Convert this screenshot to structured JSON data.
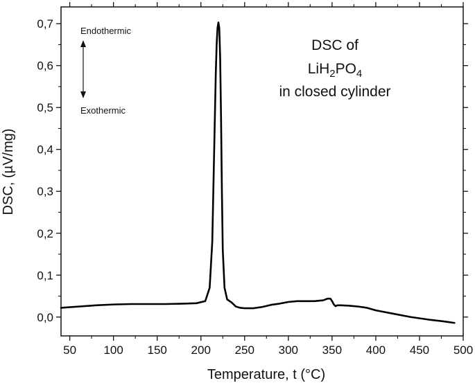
{
  "chart_data": {
    "type": "line",
    "xlabel": "Temperature, t (°C)",
    "ylabel": "DSC, (µV/mg)",
    "xlim": [
      40,
      500
    ],
    "ylim": [
      -0.045,
      0.74
    ],
    "x_ticks": [
      "50",
      "100",
      "150",
      "200",
      "250",
      "300",
      "350",
      "400",
      "450",
      "500"
    ],
    "x_tick_values": [
      50,
      100,
      150,
      200,
      250,
      300,
      350,
      400,
      450,
      500
    ],
    "y_ticks": [
      "0,0",
      "0,1",
      "0,2",
      "0,3",
      "0,4",
      "0,5",
      "0,6",
      "0,7"
    ],
    "y_tick_values": [
      0.0,
      0.1,
      0.2,
      0.3,
      0.4,
      0.5,
      0.6,
      0.7
    ],
    "grid": false,
    "line_color": "#000000",
    "annotations": {
      "endothermic": "Endothermic",
      "exothermic": "Exothermic",
      "title_line1": "DSC of",
      "title_line2_main": "LiH",
      "title_line2_sub1": "2",
      "title_line2_mid": "PO",
      "title_line2_sub2": "4",
      "title_line3": "in closed cylinder"
    },
    "series": [
      {
        "x": [
          40,
          60,
          80,
          100,
          120,
          140,
          160,
          180,
          195,
          205,
          210,
          213,
          215,
          217,
          218,
          219,
          220,
          221,
          222,
          223,
          224,
          225,
          227,
          230,
          235,
          240,
          245,
          250,
          255,
          260,
          270,
          280,
          290,
          300,
          310,
          320,
          330,
          340,
          345,
          348,
          350,
          352,
          354,
          356,
          360,
          370,
          380,
          390,
          400,
          420,
          440,
          460,
          480,
          490
        ],
        "y": [
          0.022,
          0.025,
          0.028,
          0.03,
          0.031,
          0.031,
          0.031,
          0.032,
          0.033,
          0.038,
          0.07,
          0.18,
          0.38,
          0.58,
          0.65,
          0.69,
          0.703,
          0.69,
          0.62,
          0.48,
          0.3,
          0.16,
          0.07,
          0.042,
          0.035,
          0.025,
          0.022,
          0.021,
          0.021,
          0.021,
          0.024,
          0.029,
          0.032,
          0.036,
          0.038,
          0.038,
          0.038,
          0.04,
          0.044,
          0.044,
          0.038,
          0.03,
          0.026,
          0.028,
          0.028,
          0.027,
          0.025,
          0.022,
          0.016,
          0.008,
          0.0,
          -0.006,
          -0.011,
          -0.014
        ]
      }
    ]
  }
}
